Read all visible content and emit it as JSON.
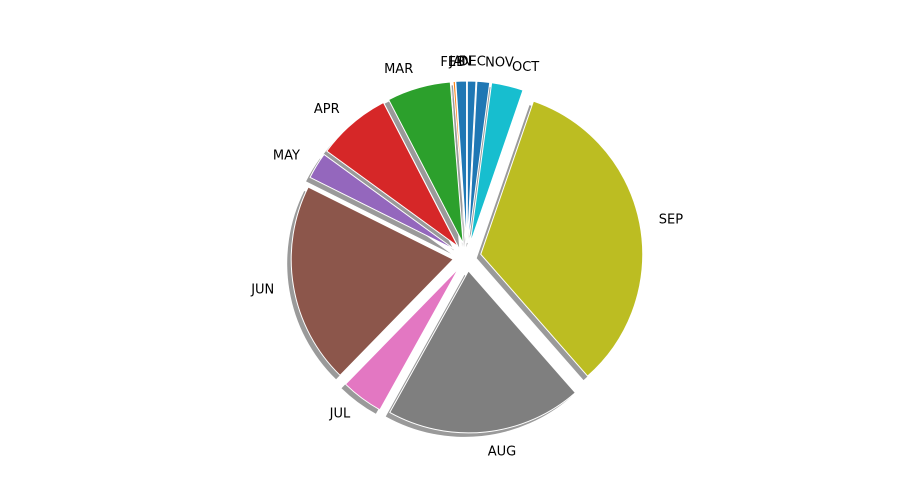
{
  "chart_data": {
    "type": "pie",
    "title": "",
    "style": {
      "exploded_slices": true,
      "shadow": true,
      "slice_edge_color": "#ffffff"
    },
    "slices": [
      {
        "label": "JAN",
        "value": 1.0,
        "color": "#1f77b4"
      },
      {
        "label": "FEB",
        "value": 0.2,
        "color": "#ff7f0e"
      },
      {
        "label": "MAR",
        "value": 6.0,
        "color": "#2ca02c"
      },
      {
        "label": "APR",
        "value": 7.0,
        "color": "#d62728"
      },
      {
        "label": "MAY",
        "value": 2.5,
        "color": "#9467bd"
      },
      {
        "label": "JUN",
        "value": 19.0,
        "color": "#8c564b"
      },
      {
        "label": "JUL",
        "value": 4.0,
        "color": "#e377c2"
      },
      {
        "label": "AUG",
        "value": 18.5,
        "color": "#7f7f7f"
      },
      {
        "label": "SEP",
        "value": 31.5,
        "color": "#bcbd22"
      },
      {
        "label": "OCT",
        "value": 3.0,
        "color": "#17becf"
      },
      {
        "label": "NOV",
        "value": 1.2,
        "color": "#1f77b4"
      },
      {
        "label": "DEC",
        "value": 0.8,
        "color": "#1f77b4"
      }
    ]
  }
}
